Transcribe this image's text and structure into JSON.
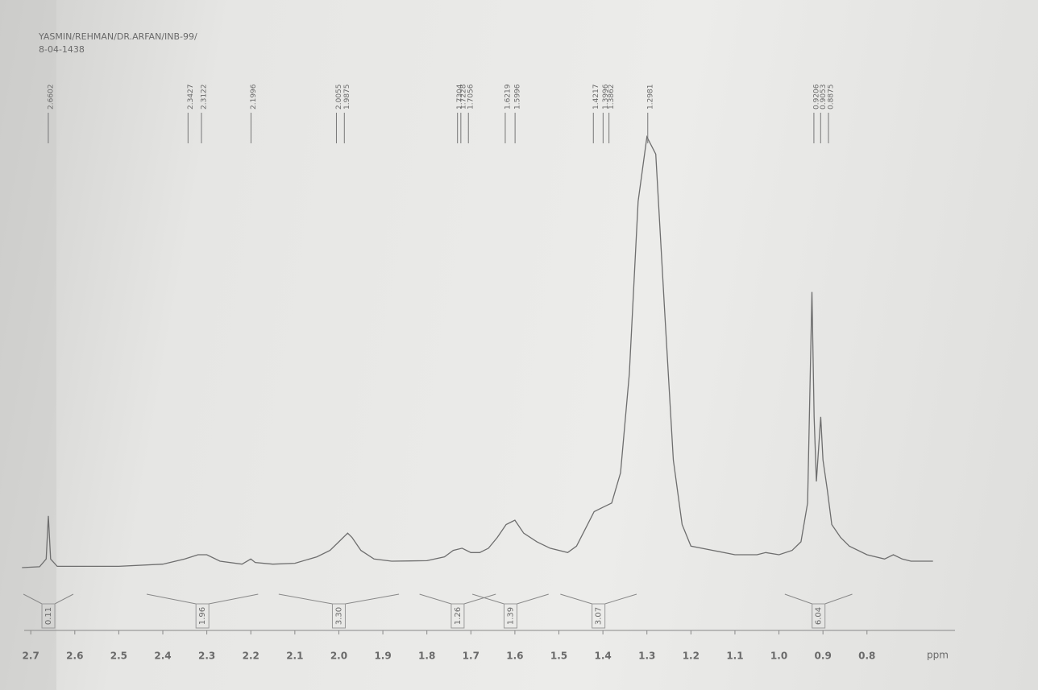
{
  "chart_data": {
    "type": "line",
    "title": "YASMIN/REHMAN/DR.ARFAN/INB-99/",
    "subtitle": "8-04-1438",
    "x_label": "ppm",
    "xlim": [
      2.715,
      0.6
    ],
    "ylim": [
      0,
      100
    ],
    "xticks": [
      2.7,
      2.6,
      2.5,
      2.4,
      2.3,
      2.2,
      2.1,
      {
        "value": 2,
        "label": "2.0"
      },
      1.9,
      1.8,
      1.7,
      1.6,
      1.5,
      1.4,
      1.3,
      1.2,
      1.1,
      {
        "value": 1,
        "label": "1.0"
      },
      0.9,
      0.8
    ],
    "color": "#6e6e6e",
    "x": [
      2.72,
      2.68,
      2.665,
      2.66,
      2.655,
      2.64,
      2.5,
      2.4,
      2.35,
      2.32,
      2.3,
      2.27,
      2.22,
      2.2,
      2.19,
      2.15,
      2.1,
      2.05,
      2.02,
      2.0,
      1.98,
      1.97,
      1.95,
      1.92,
      1.88,
      1.8,
      1.76,
      1.74,
      1.72,
      1.7,
      1.68,
      1.66,
      1.64,
      1.62,
      1.6,
      1.58,
      1.55,
      1.52,
      1.48,
      1.46,
      1.44,
      1.42,
      1.4,
      1.38,
      1.36,
      1.34,
      1.32,
      1.3,
      1.28,
      1.26,
      1.24,
      1.22,
      1.2,
      1.15,
      1.1,
      1.05,
      1.03,
      1.0,
      0.97,
      0.95,
      0.935,
      0.925,
      0.92,
      0.915,
      0.905,
      0.9,
      0.89,
      0.88,
      0.86,
      0.84,
      0.8,
      0.76,
      0.74,
      0.72,
      0.7,
      0.65
    ],
    "values": [
      0,
      0.2,
      2,
      12,
      2,
      0.3,
      0.3,
      0.8,
      2,
      3,
      3,
      1.5,
      0.8,
      2,
      1.2,
      0.8,
      1,
      2.5,
      4,
      6,
      8,
      7,
      4,
      2,
      1.5,
      1.6,
      2.5,
      4,
      4.5,
      3.5,
      3.5,
      4.5,
      7,
      10,
      11,
      8,
      6,
      4.5,
      3.5,
      5,
      9,
      13,
      14,
      15,
      22,
      45,
      85,
      100,
      96,
      60,
      25,
      10,
      5,
      4,
      3,
      3,
      3.5,
      3,
      4,
      6,
      15,
      64,
      35,
      20,
      35,
      25,
      18,
      10,
      7,
      5,
      3,
      2,
      3,
      2,
      1.5,
      1.5
    ],
    "peaks": [
      2.6602,
      2.3427,
      2.3122,
      2.1996,
      2.0055,
      1.9875,
      1.7304,
      1.7228,
      1.7056,
      1.6219,
      1.5996,
      1.4217,
      1.3996,
      1.3862,
      1.2981,
      0.9206,
      0.9053,
      0.8875
    ],
    "integrals": {
      "ranges": [
        [
          2.68,
          2.64
        ],
        [
          2.4,
          2.22
        ],
        [
          2.1,
          1.9
        ],
        [
          1.78,
          1.68
        ],
        [
          1.66,
          1.56
        ],
        [
          1.46,
          1.36
        ],
        [
          0.95,
          0.87
        ]
      ],
      "values": [
        0.11,
        1.96,
        3.3,
        1.26,
        1.39,
        3.07,
        6.04
      ],
      "value_labels": [
        "0.11",
        "1.96",
        "3.30",
        "1.26",
        "1.39",
        "3.07",
        "6.04"
      ]
    }
  }
}
